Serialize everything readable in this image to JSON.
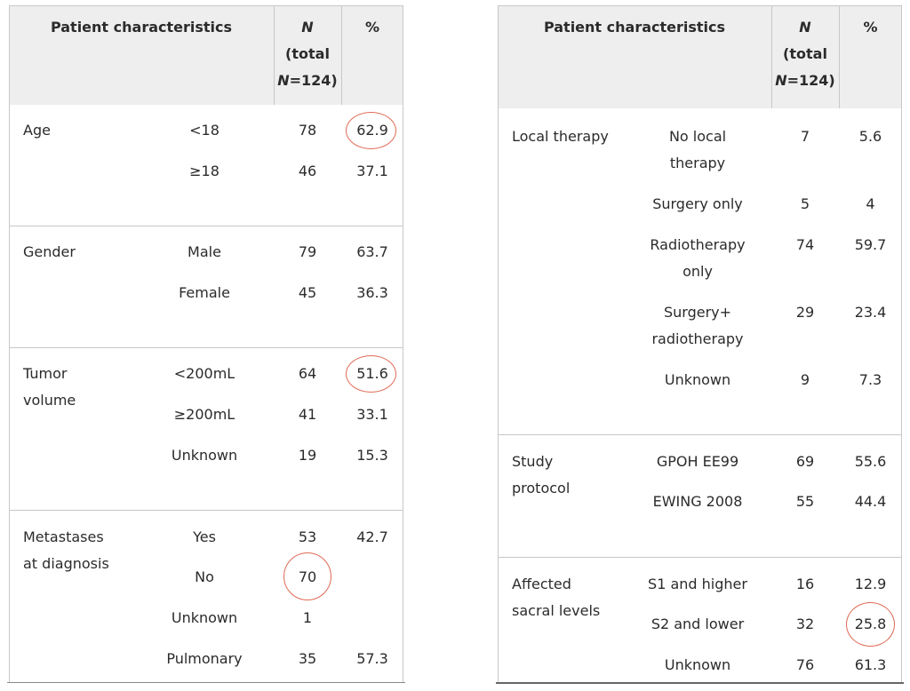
{
  "header": {
    "characteristics": "Patient characteristics",
    "n_italic": "N",
    "n_total_line": "(total",
    "n_eq": "=124)",
    "percent": "%"
  },
  "left_table": [
    {
      "label_lines": [
        "Age"
      ],
      "rows": [
        {
          "sub": "<18",
          "n": "78",
          "pct": "62.9"
        },
        {
          "sub": "≥18",
          "n": "46",
          "pct": "37.1"
        }
      ]
    },
    {
      "label_lines": [
        "Gender"
      ],
      "rows": [
        {
          "sub": "Male",
          "n": "79",
          "pct": "63.7"
        },
        {
          "sub": "Female",
          "n": "45",
          "pct": "36.3"
        }
      ]
    },
    {
      "label_lines": [
        "Tumor",
        "volume"
      ],
      "rows": [
        {
          "sub": "<200mL",
          "n": "64",
          "pct": "51.6"
        },
        {
          "sub": "≥200mL",
          "n": "41",
          "pct": "33.1"
        },
        {
          "sub": "Unknown",
          "n": "19",
          "pct": "15.3"
        }
      ]
    },
    {
      "label_lines": [
        "Metastases",
        "at diagnosis"
      ],
      "rows": [
        {
          "sub": "Yes",
          "n": "53",
          "pct": "42.7"
        },
        {
          "sub": "No",
          "n": "70",
          "pct": ""
        },
        {
          "sub": "Unknown",
          "n": "1",
          "pct": ""
        },
        {
          "sub": "Pulmonary",
          "n": "35",
          "pct": "57.3"
        }
      ]
    }
  ],
  "right_table": [
    {
      "label_lines": [
        "Local therapy"
      ],
      "rows": [
        {
          "sub_lines": [
            "No local",
            "therapy"
          ],
          "n": "7",
          "pct": "5.6"
        },
        {
          "sub_lines": [
            "Surgery only"
          ],
          "n": "5",
          "pct": "4"
        },
        {
          "sub_lines": [
            "Radiotherapy",
            "only"
          ],
          "n": "74",
          "pct": "59.7"
        },
        {
          "sub_lines": [
            "Surgery+",
            "radiotherapy"
          ],
          "n": "29",
          "pct": "23.4"
        },
        {
          "sub_lines": [
            "Unknown"
          ],
          "n": "9",
          "pct": "7.3"
        }
      ]
    },
    {
      "label_lines": [
        "Study",
        "protocol"
      ],
      "rows": [
        {
          "sub_lines": [
            "GPOH EE99"
          ],
          "n": "69",
          "pct": "55.6"
        },
        {
          "sub_lines": [
            "EWING 2008"
          ],
          "n": "55",
          "pct": "44.4"
        }
      ]
    },
    {
      "label_lines": [
        "Affected",
        "sacral levels"
      ],
      "rows": [
        {
          "sub_lines": [
            "S1 and higher"
          ],
          "n": "16",
          "pct": "12.9"
        },
        {
          "sub_lines": [
            "S2 and lower"
          ],
          "n": "32",
          "pct": "25.8"
        },
        {
          "sub_lines": [
            "Unknown"
          ],
          "n": "76",
          "pct": "61.3"
        }
      ]
    }
  ],
  "highlight_color": "#e06a55"
}
